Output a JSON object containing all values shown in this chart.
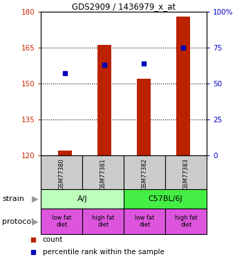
{
  "title": "GDS2909 / 1436979_x_at",
  "samples": [
    "GSM77380",
    "GSM77381",
    "GSM77382",
    "GSM77383"
  ],
  "bar_bottoms": [
    120,
    120,
    120,
    120
  ],
  "bar_tops": [
    122,
    166,
    152,
    178
  ],
  "percentile_values": [
    57,
    63,
    64,
    75
  ],
  "ylim_left": [
    120,
    180
  ],
  "ylim_right": [
    0,
    100
  ],
  "yticks_left": [
    120,
    135,
    150,
    165,
    180
  ],
  "yticks_right": [
    0,
    25,
    50,
    75,
    100
  ],
  "ytick_labels_right": [
    "0",
    "25",
    "50",
    "75",
    "100%"
  ],
  "bar_color": "#bb2200",
  "dot_color": "#0000bb",
  "strain_labels": [
    "A/J",
    "C57BL/6J"
  ],
  "strain_colors": [
    "#bbffbb",
    "#44ee44"
  ],
  "protocol_labels": [
    "low fat\ndiet",
    "high fat\ndiet",
    "low fat\ndiet",
    "high fat\ndiet"
  ],
  "protocol_color": "#dd55dd",
  "sample_box_color": "#cccccc",
  "left_tick_color": "#cc2200",
  "right_tick_color": "#0000cc",
  "grid_dotted_at": [
    135,
    150,
    165
  ]
}
